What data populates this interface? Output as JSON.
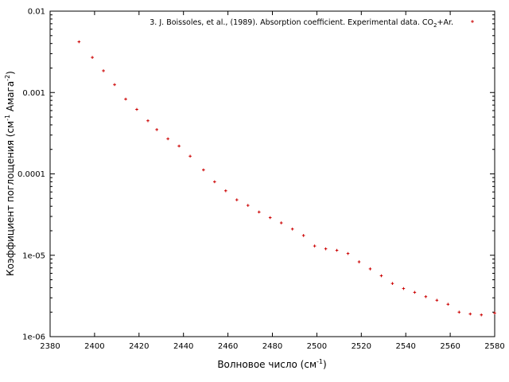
{
  "chart_data": {
    "type": "scatter",
    "title": "",
    "xlabel": {
      "main": "Волновое число (см",
      "sup": "-1",
      "tail": ")"
    },
    "ylabel": {
      "main": "Коэффициент поглощения (см",
      "sup1": "-1",
      "mid": " Амага",
      "sup2": "-2",
      "tail": ")"
    },
    "xlim": [
      2380,
      2580
    ],
    "ylim": [
      1e-06,
      0.01
    ],
    "yscale": "log",
    "xticks": [
      2380,
      2400,
      2420,
      2440,
      2460,
      2480,
      2500,
      2520,
      2540,
      2560,
      2580
    ],
    "xtick_labels": [
      "2380",
      "2400",
      "2420",
      "2440",
      "2460",
      "2480",
      "2500",
      "2520",
      "2540",
      "2560",
      "2580"
    ],
    "yticks": [
      1e-06,
      1e-05,
      0.0001,
      0.001,
      0.01
    ],
    "ytick_labels": [
      "1e-06",
      "1e-05",
      "0.0001",
      "0.001",
      "0.01"
    ],
    "grid": false,
    "legend_position": "top-right",
    "series": [
      {
        "name": "3. J. Boissoles, et al., (1989). Absorption coefficient. Experimental data. CO2+Ar.",
        "legend": {
          "prefix": "3. J. Boissoles, et al., (1989). Absorption coefficient. Experimental data. CO",
          "sub": "2",
          "suffix": "+Ar."
        },
        "color": "#cc0000",
        "marker": "plus",
        "x": [
          2393,
          2399,
          2404,
          2409,
          2414,
          2419,
          2424,
          2428,
          2433,
          2438,
          2443,
          2449,
          2454,
          2459,
          2464,
          2469,
          2474,
          2479,
          2484,
          2489,
          2494,
          2499,
          2504,
          2509,
          2514,
          2519,
          2524,
          2529,
          2534,
          2539,
          2544,
          2549,
          2554,
          2559,
          2564,
          2569,
          2574,
          2580
        ],
        "y": [
          0.0042,
          0.0027,
          0.00185,
          0.00125,
          0.00083,
          0.00062,
          0.00045,
          0.00035,
          0.00027,
          0.00022,
          0.000165,
          0.000112,
          8e-05,
          6.2e-05,
          4.8e-05,
          4.1e-05,
          3.4e-05,
          2.9e-05,
          2.5e-05,
          2.1e-05,
          1.75e-05,
          1.3e-05,
          1.2e-05,
          1.15e-05,
          1.05e-05,
          8.3e-06,
          6.8e-06,
          5.6e-06,
          4.5e-06,
          3.9e-06,
          3.5e-06,
          3.1e-06,
          2.8e-06,
          2.5e-06,
          2e-06,
          1.9e-06,
          1.85e-06,
          1.95e-06
        ]
      }
    ]
  }
}
